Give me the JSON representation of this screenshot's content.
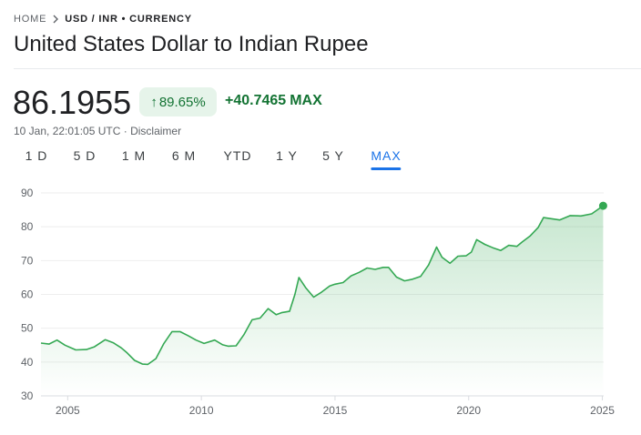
{
  "breadcrumb": {
    "home": "HOME",
    "current": "USD / INR • CURRENCY"
  },
  "title": "United States Dollar to Indian Rupee",
  "price": "86.1955",
  "change": {
    "percent": "89.65%",
    "absolute": "+40.7465",
    "span": "MAX"
  },
  "meta": {
    "timestamp": "10 Jan, 22:01:05 UTC",
    "separator": "·",
    "disclaimer": "Disclaimer"
  },
  "tabs": [
    {
      "label": "1 D",
      "active": false
    },
    {
      "label": "5 D",
      "active": false
    },
    {
      "label": "1 M",
      "active": false
    },
    {
      "label": "6 M",
      "active": false
    },
    {
      "label": "YTD",
      "active": false
    },
    {
      "label": "1 Y",
      "active": false
    },
    {
      "label": "5 Y",
      "active": false
    },
    {
      "label": "MAX",
      "active": true
    }
  ],
  "colors": {
    "up": "#137333",
    "line": "#34a853",
    "accent": "#1a73e8"
  },
  "icons": {
    "breadcrumb_separator": "chevron-right-icon",
    "change_arrow": "arrow-up-icon"
  },
  "chart_data": {
    "type": "area",
    "title": "",
    "xlabel": "",
    "ylabel": "",
    "xlim": [
      2004.0,
      2025.05
    ],
    "ylim": [
      30,
      90
    ],
    "y_ticks": [
      30,
      40,
      50,
      60,
      70,
      80,
      90
    ],
    "x_ticks": [
      2005,
      2010,
      2015,
      2020,
      2025
    ],
    "grid": true,
    "series": [
      {
        "x": [
          2004.0,
          2004.3,
          2004.6,
          2004.9,
          2005.3,
          2005.7,
          2006.0,
          2006.4,
          2006.7,
          2007.0,
          2007.2,
          2007.5,
          2007.8,
          2008.0,
          2008.3,
          2008.6,
          2008.9,
          2009.2,
          2009.5,
          2009.8,
          2010.1,
          2010.5,
          2010.8,
          2011.0,
          2011.3,
          2011.6,
          2011.9,
          2012.2,
          2012.5,
          2012.8,
          2013.0,
          2013.3,
          2013.5,
          2013.65,
          2013.9,
          2014.2,
          2014.5,
          2014.8,
          2015.0,
          2015.3,
          2015.6,
          2015.9,
          2016.2,
          2016.5,
          2016.8,
          2017.0,
          2017.3,
          2017.6,
          2017.9,
          2018.2,
          2018.5,
          2018.8,
          2019.0,
          2019.3,
          2019.6,
          2019.9,
          2020.1,
          2020.3,
          2020.6,
          2020.9,
          2021.2,
          2021.5,
          2021.8,
          2022.0,
          2022.3,
          2022.6,
          2022.8,
          2023.0,
          2023.4,
          2023.8,
          2024.2,
          2024.6,
          2025.03
        ],
        "values": [
          45.6,
          45.3,
          46.5,
          45.0,
          43.6,
          43.7,
          44.5,
          46.6,
          45.7,
          44.2,
          42.9,
          40.5,
          39.4,
          39.3,
          41.0,
          45.5,
          49.0,
          49.0,
          47.8,
          46.5,
          45.5,
          46.5,
          45.1,
          44.7,
          44.8,
          48.2,
          52.5,
          53.0,
          55.8,
          54.0,
          54.6,
          55.0,
          60.0,
          65.0,
          62.0,
          59.2,
          60.7,
          62.5,
          63.0,
          63.5,
          65.5,
          66.5,
          67.8,
          67.4,
          68.0,
          68.0,
          65.1,
          64.0,
          64.5,
          65.3,
          68.7,
          74.0,
          71.0,
          69.2,
          71.3,
          71.4,
          72.5,
          76.2,
          74.8,
          73.8,
          73.0,
          74.5,
          74.2,
          75.5,
          77.3,
          79.8,
          82.7,
          82.5,
          82.0,
          83.3,
          83.2,
          83.8,
          86.2
        ]
      }
    ]
  }
}
